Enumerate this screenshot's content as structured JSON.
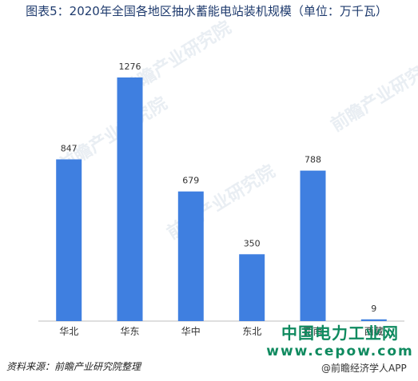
{
  "chart_data": {
    "type": "bar",
    "title": "图表5：2020年全国各地区抽水蓄能电站装机规模（单位：万千瓦）",
    "categories": [
      "华北",
      "华东",
      "华中",
      "东北",
      "西南",
      "西藏"
    ],
    "values": [
      847,
      1276,
      679,
      350,
      788,
      9
    ],
    "ylim": [
      0,
      1276
    ],
    "bar_color": "#3f7fe0",
    "grid": false,
    "legend": "none"
  },
  "source": "资料来源：前瞻产业研究院整理",
  "watermarks": {
    "cepow_cn": "中国电力工业网",
    "cepow_url": "www.cepow.com",
    "app": "@前瞻经济学人APP",
    "background": "前瞻产业研究院"
  }
}
